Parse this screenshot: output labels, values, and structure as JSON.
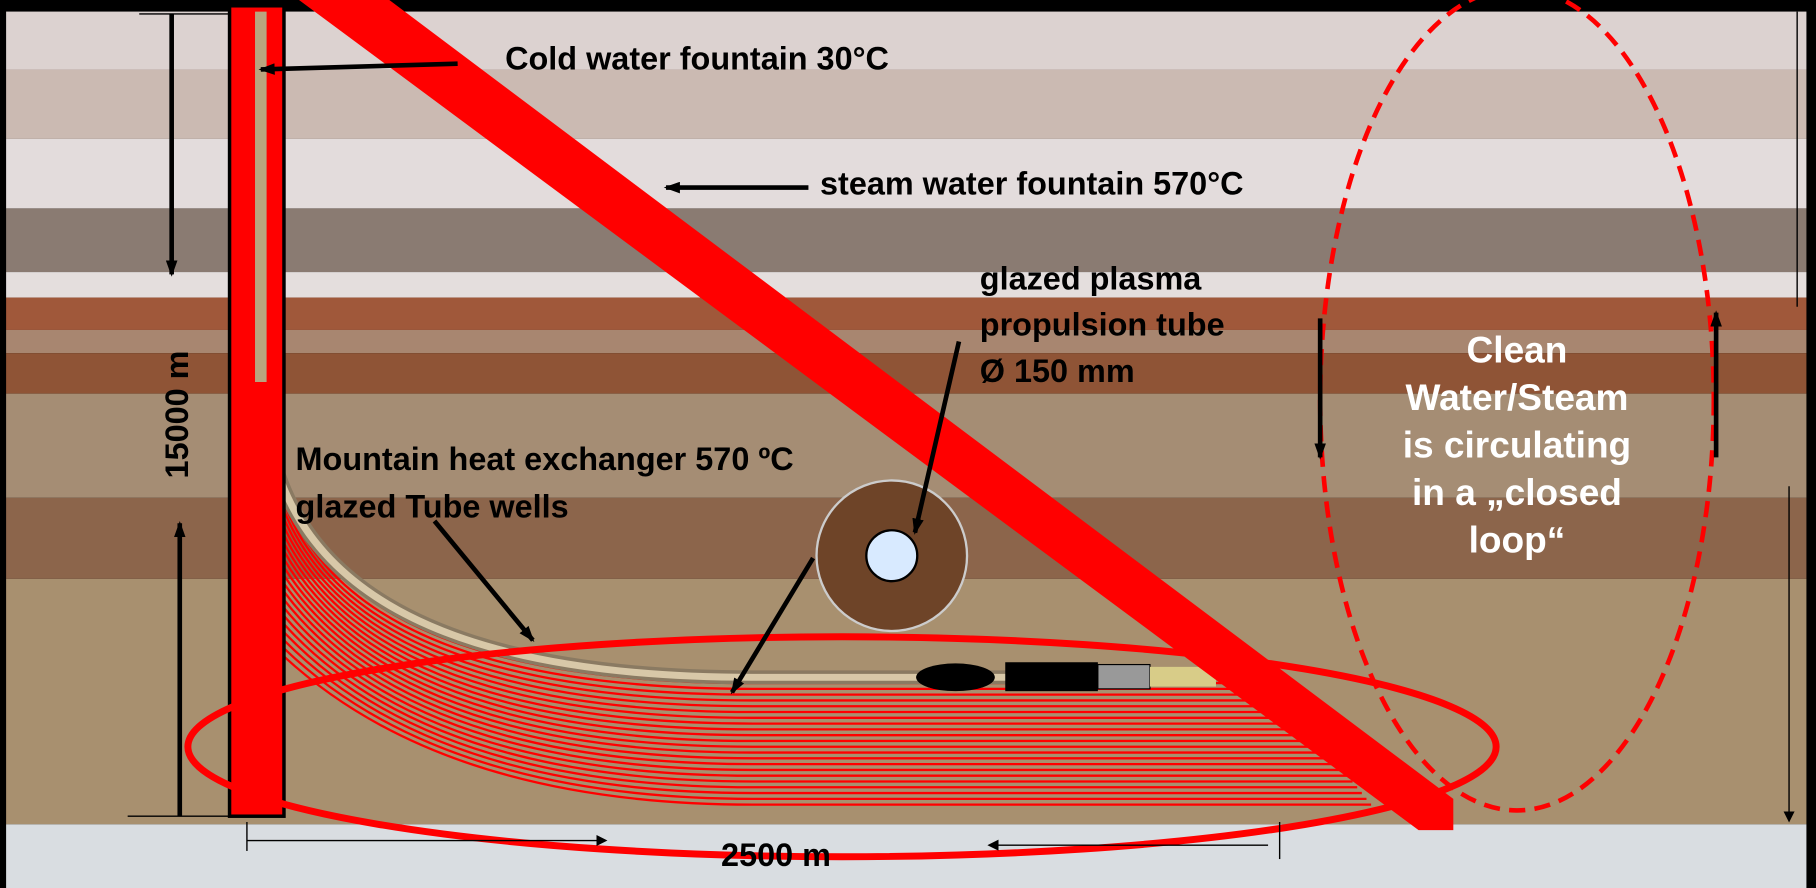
{
  "labels": {
    "cold_water": "Cold water fountain 30°C",
    "steam_water": "steam water fountain 570°C",
    "plasma_tube": [
      "glazed plasma",
      "propulsion tube",
      "Ø 150 mm"
    ],
    "heat_exchanger": [
      "Mountain heat exchanger 570 ºC",
      "glazed Tube wells"
    ],
    "depth": "15000 m",
    "width": "2500 m",
    "closed_loop": [
      "Clean",
      "Water/Steam",
      "is circulating",
      "in a „closed",
      "loop“"
    ]
  }
}
